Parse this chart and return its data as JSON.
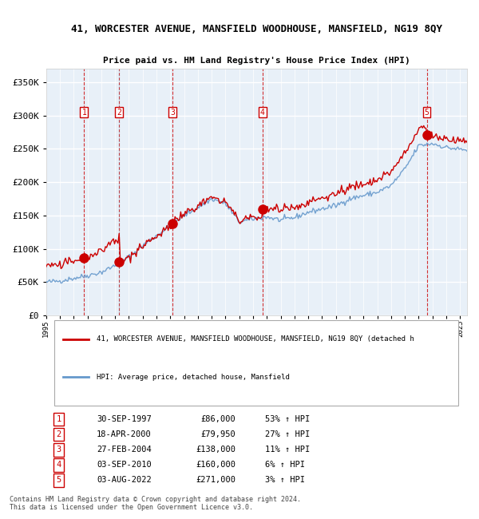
{
  "title": "41, WORCESTER AVENUE, MANSFIELD WOODHOUSE, MANSFIELD, NG19 8QY",
  "subtitle": "Price paid vs. HM Land Registry's House Price Index (HPI)",
  "legend_red": "41, WORCESTER AVENUE, MANSFIELD WOODHOUSE, MANSFIELD, NG19 8QY (detached h",
  "legend_blue": "HPI: Average price, detached house, Mansfield",
  "footer1": "Contains HM Land Registry data © Crown copyright and database right 2024.",
  "footer2": "This data is licensed under the Open Government Licence v3.0.",
  "transactions": [
    {
      "num": 1,
      "date": "30-SEP-1997",
      "year": 1997.75,
      "price": 86000,
      "pct": "53%",
      "dir": "↑"
    },
    {
      "num": 2,
      "date": "18-APR-2000",
      "year": 2000.29,
      "price": 79950,
      "pct": "27%",
      "dir": "↑"
    },
    {
      "num": 3,
      "date": "27-FEB-2004",
      "year": 2004.15,
      "price": 138000,
      "pct": "11%",
      "dir": "↑"
    },
    {
      "num": 4,
      "date": "03-SEP-2010",
      "year": 2010.67,
      "price": 160000,
      "pct": "6%",
      "dir": "↑"
    },
    {
      "num": 5,
      "date": "03-AUG-2022",
      "year": 2022.58,
      "price": 271000,
      "pct": "3%",
      "dir": "↑"
    }
  ],
  "ylim": [
    0,
    370000
  ],
  "xlim_start": 1995.0,
  "xlim_end": 2025.5,
  "bg_color": "#ddeeff",
  "plot_bg": "#e8f0f8",
  "grid_color": "#ffffff",
  "red_line_color": "#cc0000",
  "blue_line_color": "#6699cc",
  "vline_color_red": "#cc0000",
  "vline_color_blue": "#aaaacc",
  "marker_color": "#cc0000"
}
